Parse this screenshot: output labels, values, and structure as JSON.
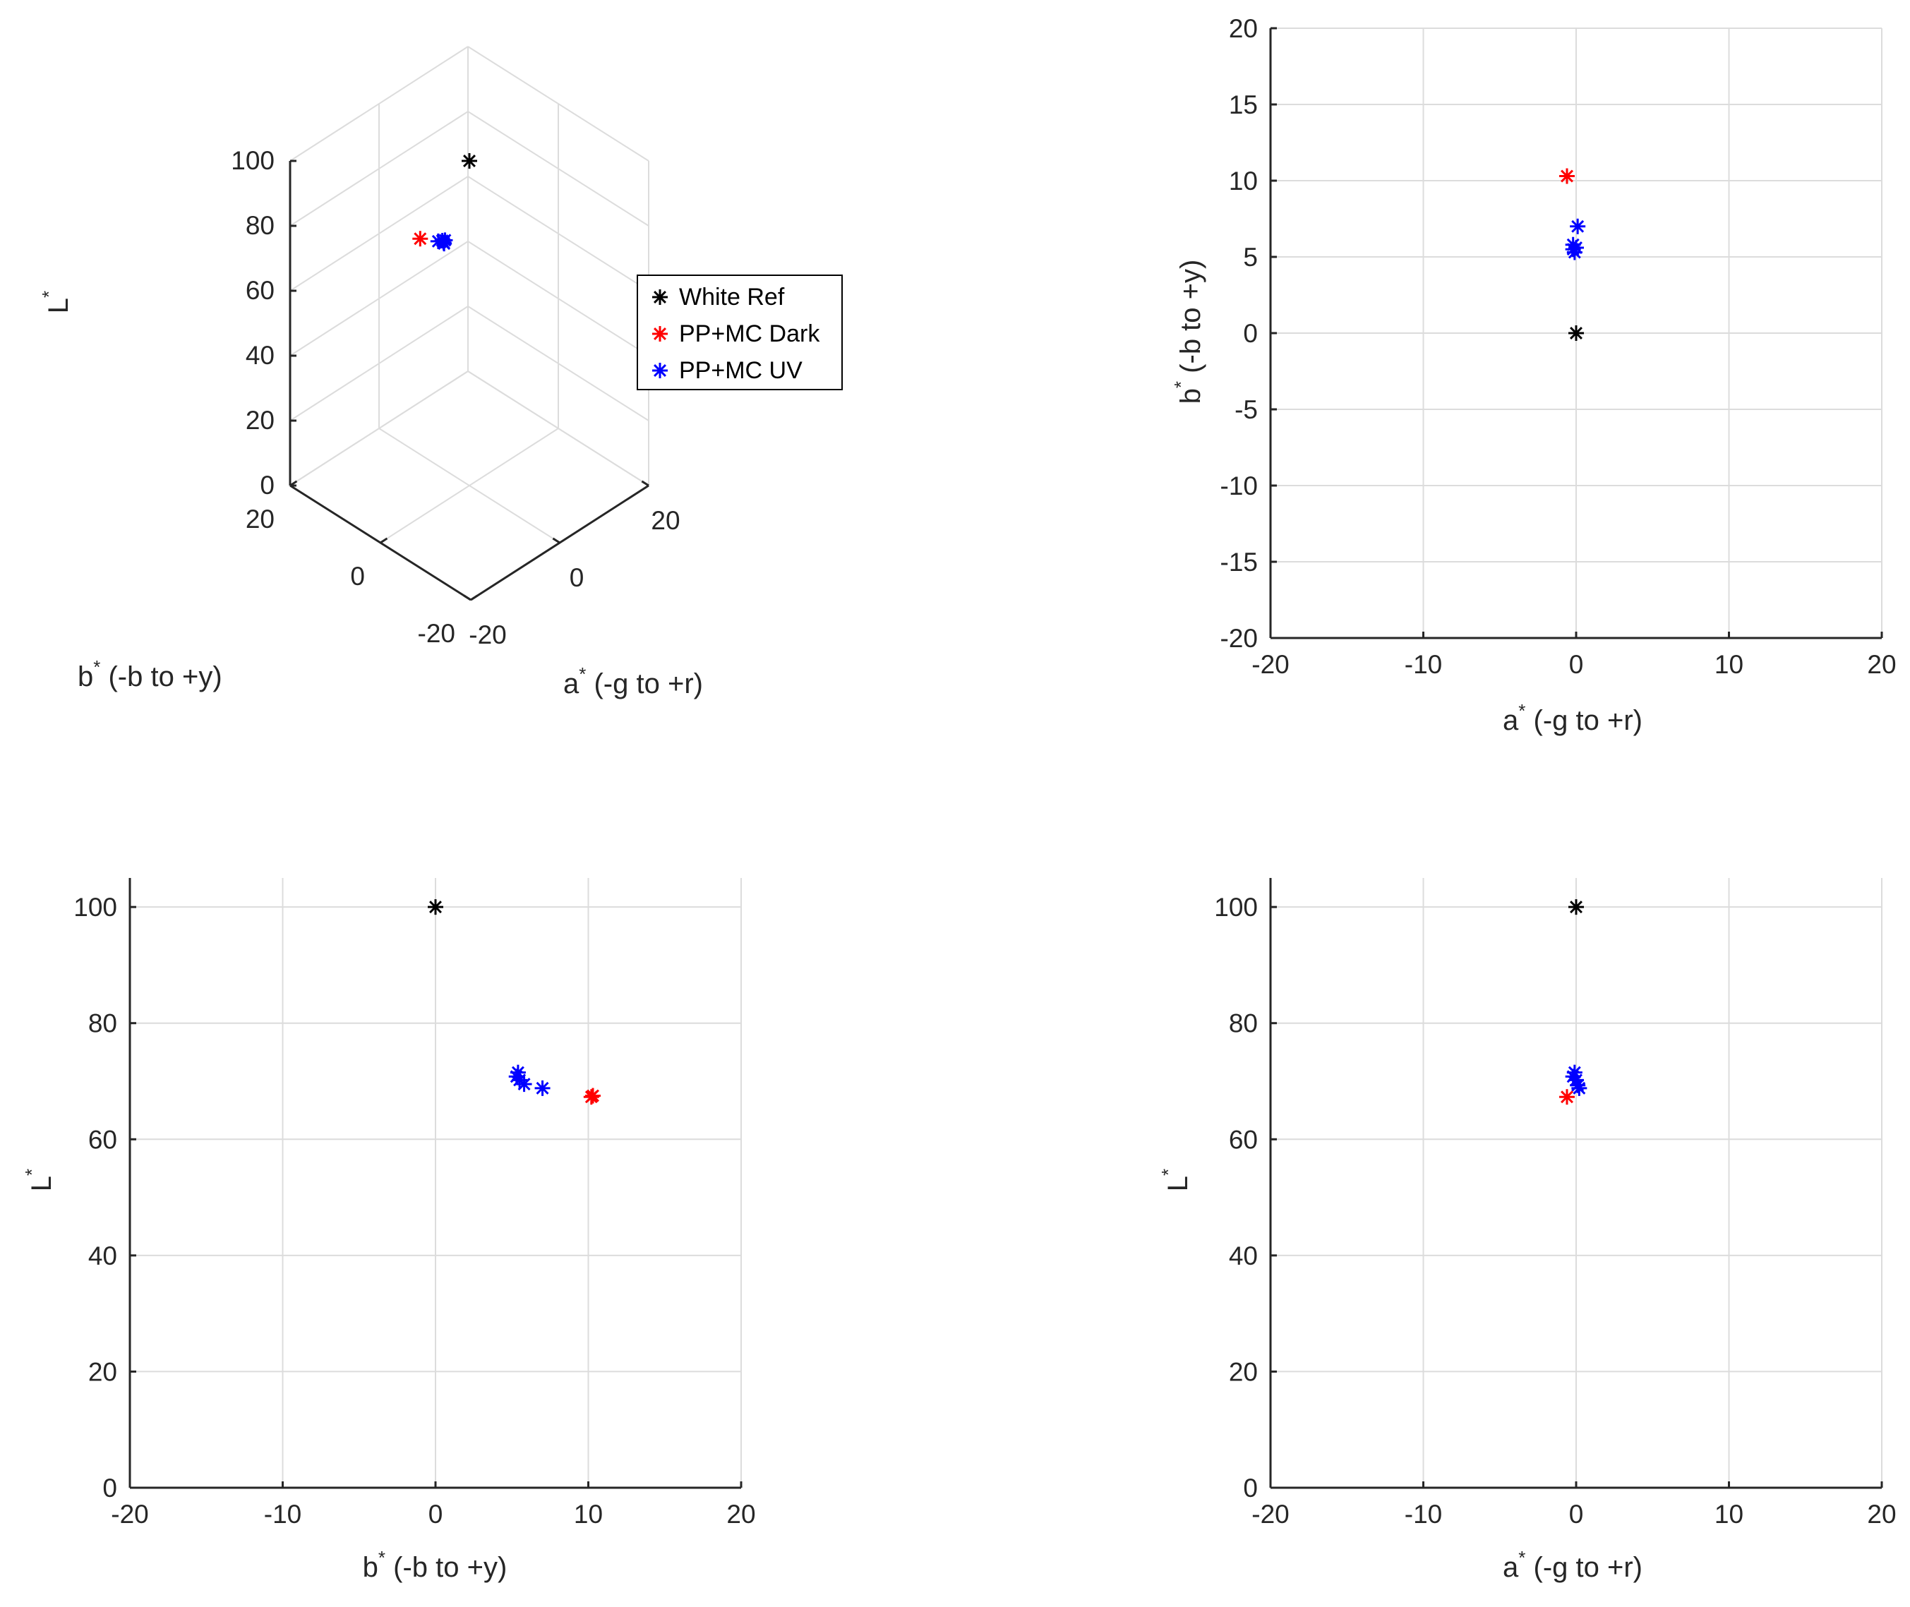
{
  "colors": {
    "white_ref": "#000000",
    "pp_mc_dark": "#ff0000",
    "pp_mc_uv": "#0000ff",
    "grid": "#dcdcdc",
    "axis": "#262626"
  },
  "legend": {
    "items": [
      {
        "label": "White Ref",
        "color": "#000000"
      },
      {
        "label": "PP+MC Dark",
        "color": "#ff0000"
      },
      {
        "label": "PP+MC UV",
        "color": "#0000ff"
      }
    ]
  },
  "labels": {
    "a_star": "a",
    "a_rest": " (-g to +r)",
    "b_star": "b",
    "b_rest": " (-b to +y)",
    "l_star": "L",
    "star": "*"
  },
  "chart_data": [
    {
      "type": "scatter3d",
      "panel": "top-left",
      "xlabel": "a* (-g to +r)",
      "ylabel": "b* (-b to +y)",
      "zlabel": "L*",
      "xlim": [
        -20,
        20
      ],
      "ylim": [
        -20,
        20
      ],
      "zlim": [
        0,
        100
      ],
      "xticks": [
        -20,
        0,
        20
      ],
      "yticks": [
        -20,
        0,
        20
      ],
      "zticks": [
        0,
        20,
        40,
        60,
        80,
        100
      ],
      "series": [
        {
          "name": "White Ref",
          "points": [
            [
              0,
              0,
              100
            ]
          ]
        },
        {
          "name": "PP+MC Dark",
          "points": [
            [
              -0.6,
              10.3,
              67.5
            ]
          ]
        },
        {
          "name": "PP+MC UV",
          "points": [
            [
              0.1,
              7.0,
              69.0
            ],
            [
              -0.2,
              5.5,
              70.2
            ],
            [
              -0.1,
              5.3,
              71.0
            ],
            [
              0.0,
              5.6,
              69.6
            ],
            [
              -0.2,
              5.8,
              70.5
            ]
          ]
        }
      ]
    },
    {
      "type": "scatter",
      "panel": "top-right",
      "xlabel": "a* (-g to +r)",
      "ylabel": "b* (-b to +y)",
      "xlim": [
        -20,
        20
      ],
      "ylim": [
        -20,
        20
      ],
      "xticks": [
        -20,
        -10,
        0,
        10,
        20
      ],
      "yticks": [
        -20,
        -15,
        -10,
        -5,
        0,
        5,
        10,
        15,
        20
      ],
      "series": [
        {
          "name": "White Ref",
          "x": [
            0
          ],
          "y": [
            0
          ]
        },
        {
          "name": "PP+MC Dark",
          "x": [
            -0.6
          ],
          "y": [
            10.3
          ]
        },
        {
          "name": "PP+MC UV",
          "x": [
            0.1,
            -0.2,
            -0.1,
            0.0,
            -0.2
          ],
          "y": [
            7.0,
            5.5,
            5.3,
            5.6,
            5.8
          ]
        }
      ]
    },
    {
      "type": "scatter",
      "panel": "bottom-left",
      "xlabel": "b* (-b to +y)",
      "ylabel": "L*",
      "xlim": [
        -20,
        20
      ],
      "ylim": [
        0,
        105
      ],
      "xticks": [
        -20,
        -10,
        0,
        10,
        20
      ],
      "yticks": [
        0,
        20,
        40,
        60,
        80,
        100
      ],
      "series": [
        {
          "name": "White Ref",
          "x": [
            0
          ],
          "y": [
            100
          ]
        },
        {
          "name": "PP+MC Dark",
          "x": [
            10.3,
            10.2
          ],
          "y": [
            67.5,
            67.3
          ]
        },
        {
          "name": "PP+MC UV",
          "x": [
            5.4,
            5.5,
            5.3,
            5.8,
            7.0
          ],
          "y": [
            71.5,
            70.2,
            70.8,
            69.5,
            68.8
          ]
        }
      ]
    },
    {
      "type": "scatter",
      "panel": "bottom-right",
      "xlabel": "a* (-g to +r)",
      "ylabel": "L*",
      "xlim": [
        -20,
        20
      ],
      "ylim": [
        0,
        105
      ],
      "xticks": [
        -20,
        -10,
        0,
        10,
        20
      ],
      "yticks": [
        0,
        20,
        40,
        60,
        80,
        100
      ],
      "series": [
        {
          "name": "White Ref",
          "x": [
            0
          ],
          "y": [
            100
          ]
        },
        {
          "name": "PP+MC Dark",
          "x": [
            -0.6
          ],
          "y": [
            67.3
          ]
        },
        {
          "name": "PP+MC UV",
          "x": [
            -0.1,
            0.0,
            0.1,
            -0.2,
            0.2
          ],
          "y": [
            71.5,
            70.2,
            69.3,
            70.8,
            68.8
          ]
        }
      ]
    }
  ]
}
